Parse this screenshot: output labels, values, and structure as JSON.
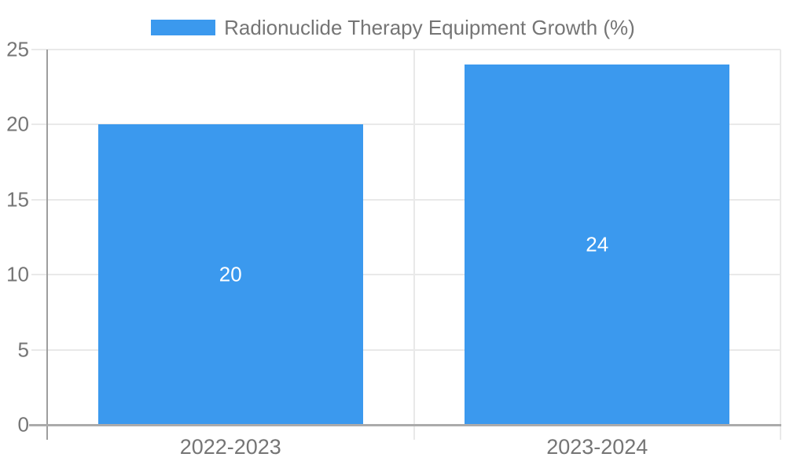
{
  "legend": {
    "label": "Radionuclide Therapy Equipment Growth (%)"
  },
  "chart_data": {
    "type": "bar",
    "title": "",
    "xlabel": "",
    "ylabel": "",
    "categories": [
      "2022-2023",
      "2023-2024"
    ],
    "series": [
      {
        "name": "Radionuclide Therapy Equipment Growth (%)",
        "values": [
          20,
          24
        ]
      }
    ],
    "value_labels_shown": true,
    "ylim": [
      0,
      25
    ],
    "yticks": [
      0,
      5,
      10,
      15,
      20,
      25
    ],
    "grid": true,
    "legend_position": "top"
  },
  "colors": {
    "background": "#ffffff",
    "bar": "#3b99ee",
    "grid": "#e9e9e9",
    "axis": "#9e9e9e",
    "baseline": "#ababab",
    "text": "#757575",
    "value_label": "#ffffff"
  }
}
